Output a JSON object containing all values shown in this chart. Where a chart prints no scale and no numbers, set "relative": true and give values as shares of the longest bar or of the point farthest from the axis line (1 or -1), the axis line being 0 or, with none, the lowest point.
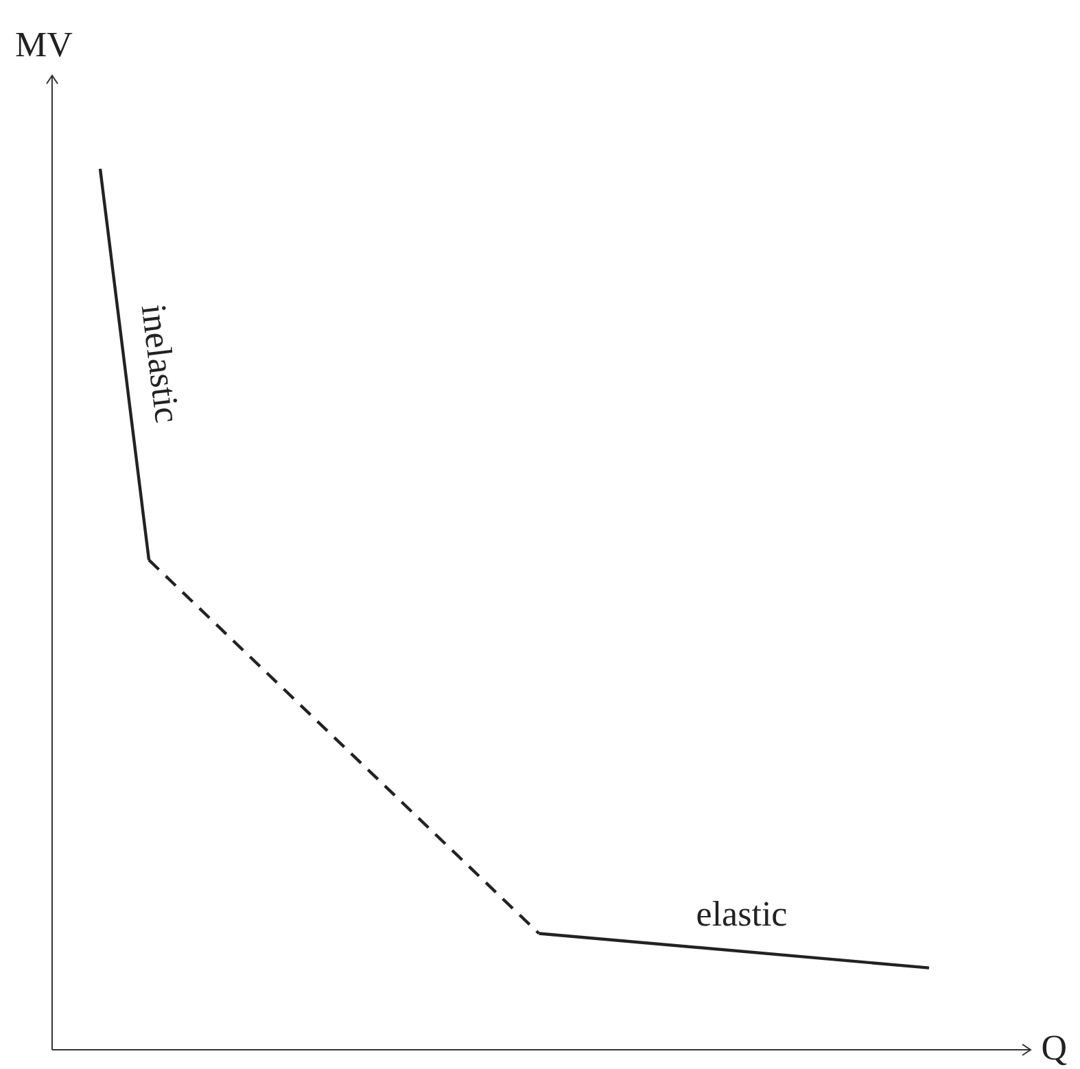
{
  "chart_data": {
    "type": "line",
    "relative": true,
    "xlabel": "Q",
    "ylabel": "MV",
    "categories": [
      null,
      null,
      null,
      null,
      null,
      null,
      null,
      null,
      null,
      null,
      null,
      null,
      null,
      null,
      null,
      null,
      null,
      null
    ],
    "series": [
      {
        "color": "#222222",
        "line_style": "solid",
        "values": [
          1,
          0.556,
          null,
          null,
          null,
          null,
          null,
          null,
          null,
          null,
          null,
          null,
          null,
          null,
          null,
          null,
          null,
          null
        ]
      },
      {
        "color": "#222222",
        "line_style": "dashed",
        "values": [
          null,
          0.556,
          null,
          null,
          null,
          null,
          null,
          null,
          null,
          0.132,
          null,
          null,
          null,
          null,
          null,
          null,
          null,
          null
        ]
      },
      {
        "color": "#222222",
        "line_style": "solid",
        "values": [
          null,
          null,
          null,
          null,
          null,
          null,
          null,
          null,
          null,
          0.132,
          null,
          null,
          null,
          null,
          null,
          null,
          null,
          0.093
        ]
      }
    ],
    "annotations": [
      "inelastic",
      "elastic"
    ]
  }
}
